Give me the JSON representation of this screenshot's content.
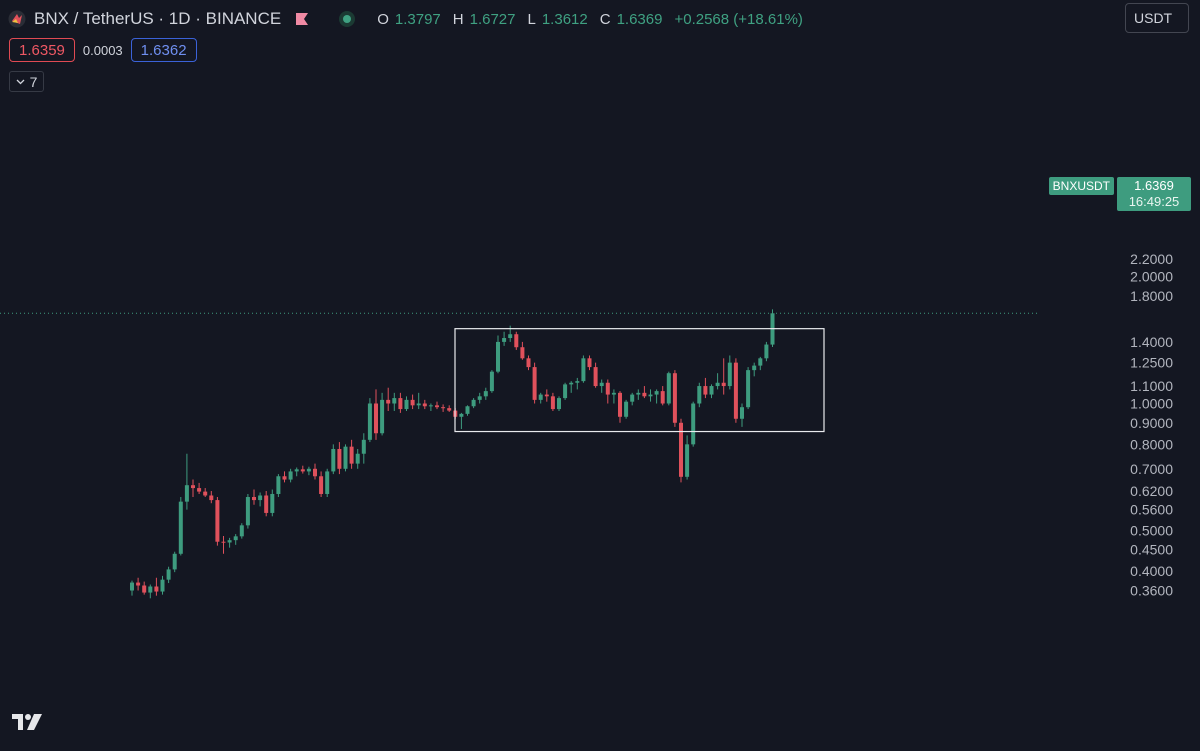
{
  "header": {
    "title": "BNX / TetherUS · 1D · BINANCE",
    "ohlc": {
      "o_label": "O",
      "o": "1.3797",
      "h_label": "H",
      "h": "1.6727",
      "l_label": "L",
      "l": "1.3612",
      "c_label": "C",
      "c": "1.6369",
      "change": "+0.2568 (+18.61%)"
    },
    "currency": "USDT"
  },
  "trade": {
    "sell_price": "1.6359",
    "spread": "0.0003",
    "buy_price": "1.6362"
  },
  "indicators_toggle": {
    "count": "7"
  },
  "last_price_tag": {
    "symbol": "BNXUSDT",
    "price": "1.6369",
    "countdown": "16:49:25"
  },
  "colors": {
    "background": "#141722",
    "up": "#3e9c7f",
    "down": "#e0515c",
    "box": "#e9eaee",
    "axis_text": "#b2b5be"
  },
  "icons": {
    "logo": "bnx-logo-icon",
    "flag": "flag-icon",
    "status": "market-status-dot-icon",
    "toggle": "chevron-down-icon",
    "brand": "tradingview-logo-icon"
  },
  "chart_data": {
    "type": "candlestick",
    "y_scale": "log",
    "ylim": [
      0.34,
      2.3
    ],
    "y_ticks": [
      "2.2000",
      "2.0000",
      "1.8000",
      "1.4000",
      "1.2500",
      "1.1000",
      "1.0000",
      "0.9000",
      "0.8000",
      "0.7000",
      "0.6200",
      "0.5600",
      "0.5000",
      "0.4500",
      "0.4000",
      "0.3600"
    ],
    "last_price": 1.6369,
    "rectangle": {
      "price_top": 1.505,
      "price_bottom": 0.858
    },
    "candles": [
      [
        0.36,
        0.38,
        0.35,
        0.376
      ],
      [
        0.376,
        0.386,
        0.36,
        0.37
      ],
      [
        0.37,
        0.378,
        0.352,
        0.356
      ],
      [
        0.356,
        0.372,
        0.345,
        0.368
      ],
      [
        0.368,
        0.386,
        0.35,
        0.358
      ],
      [
        0.358,
        0.39,
        0.352,
        0.382
      ],
      [
        0.382,
        0.41,
        0.375,
        0.404
      ],
      [
        0.404,
        0.445,
        0.398,
        0.44
      ],
      [
        0.44,
        0.6,
        0.436,
        0.585
      ],
      [
        0.585,
        0.76,
        0.56,
        0.64
      ],
      [
        0.64,
        0.66,
        0.6,
        0.63
      ],
      [
        0.63,
        0.648,
        0.61,
        0.618
      ],
      [
        0.618,
        0.63,
        0.6,
        0.605
      ],
      [
        0.605,
        0.62,
        0.58,
        0.59
      ],
      [
        0.59,
        0.6,
        0.46,
        0.47
      ],
      [
        0.47,
        0.485,
        0.44,
        0.468
      ],
      [
        0.468,
        0.48,
        0.455,
        0.474
      ],
      [
        0.474,
        0.49,
        0.462,
        0.484
      ],
      [
        0.484,
        0.52,
        0.478,
        0.514
      ],
      [
        0.514,
        0.61,
        0.505,
        0.6
      ],
      [
        0.6,
        0.625,
        0.575,
        0.59
      ],
      [
        0.59,
        0.615,
        0.57,
        0.605
      ],
      [
        0.605,
        0.62,
        0.54,
        0.55
      ],
      [
        0.55,
        0.625,
        0.54,
        0.61
      ],
      [
        0.61,
        0.68,
        0.6,
        0.672
      ],
      [
        0.672,
        0.69,
        0.65,
        0.66
      ],
      [
        0.66,
        0.7,
        0.65,
        0.69
      ],
      [
        0.69,
        0.705,
        0.672,
        0.698
      ],
      [
        0.698,
        0.712,
        0.682,
        0.69
      ],
      [
        0.69,
        0.708,
        0.676,
        0.7
      ],
      [
        0.7,
        0.72,
        0.66,
        0.672
      ],
      [
        0.672,
        0.69,
        0.6,
        0.61
      ],
      [
        0.61,
        0.7,
        0.6,
        0.69
      ],
      [
        0.69,
        0.8,
        0.68,
        0.78
      ],
      [
        0.78,
        0.81,
        0.68,
        0.7
      ],
      [
        0.7,
        0.8,
        0.69,
        0.79
      ],
      [
        0.79,
        0.82,
        0.7,
        0.72
      ],
      [
        0.72,
        0.78,
        0.7,
        0.76
      ],
      [
        0.76,
        0.85,
        0.72,
        0.82
      ],
      [
        0.82,
        1.03,
        0.81,
        1.0
      ],
      [
        1.0,
        1.08,
        0.82,
        0.85
      ],
      [
        0.85,
        1.06,
        0.84,
        1.02
      ],
      [
        1.02,
        1.09,
        0.96,
        1.0
      ],
      [
        1.0,
        1.06,
        0.96,
        1.03
      ],
      [
        1.03,
        1.06,
        0.95,
        0.97
      ],
      [
        0.97,
        1.04,
        0.96,
        1.02
      ],
      [
        1.02,
        1.05,
        0.97,
        0.99
      ],
      [
        0.99,
        1.06,
        0.97,
        1.0
      ],
      [
        1.0,
        1.02,
        0.97,
        0.985
      ],
      [
        0.985,
        1.0,
        0.96,
        0.99
      ],
      [
        0.99,
        1.01,
        0.97,
        0.98
      ],
      [
        0.98,
        0.995,
        0.955,
        0.975
      ],
      [
        0.975,
        0.99,
        0.955,
        0.962
      ],
      [
        0.962,
        0.975,
        0.92,
        0.93
      ],
      [
        0.93,
        0.95,
        0.87,
        0.945
      ],
      [
        0.945,
        0.99,
        0.935,
        0.985
      ],
      [
        0.985,
        1.03,
        0.975,
        1.02
      ],
      [
        1.02,
        1.06,
        1.0,
        1.04
      ],
      [
        1.04,
        1.09,
        1.02,
        1.07
      ],
      [
        1.07,
        1.2,
        1.06,
        1.19
      ],
      [
        1.19,
        1.45,
        1.18,
        1.4
      ],
      [
        1.4,
        1.48,
        1.37,
        1.43
      ],
      [
        1.43,
        1.53,
        1.4,
        1.46
      ],
      [
        1.46,
        1.48,
        1.34,
        1.36
      ],
      [
        1.36,
        1.4,
        1.27,
        1.28
      ],
      [
        1.28,
        1.3,
        1.2,
        1.22
      ],
      [
        1.22,
        1.25,
        1.0,
        1.02
      ],
      [
        1.02,
        1.06,
        1.0,
        1.05
      ],
      [
        1.05,
        1.08,
        1.01,
        1.04
      ],
      [
        1.04,
        1.06,
        0.96,
        0.97
      ],
      [
        0.97,
        1.04,
        0.96,
        1.03
      ],
      [
        1.03,
        1.12,
        1.02,
        1.11
      ],
      [
        1.11,
        1.13,
        1.06,
        1.12
      ],
      [
        1.12,
        1.15,
        1.08,
        1.13
      ],
      [
        1.13,
        1.3,
        1.12,
        1.28
      ],
      [
        1.28,
        1.3,
        1.2,
        1.22
      ],
      [
        1.22,
        1.25,
        1.09,
        1.1
      ],
      [
        1.1,
        1.14,
        1.06,
        1.12
      ],
      [
        1.12,
        1.14,
        1.0,
        1.05
      ],
      [
        1.05,
        1.08,
        1.0,
        1.06
      ],
      [
        1.06,
        1.07,
        0.9,
        0.93
      ],
      [
        0.93,
        1.02,
        0.92,
        1.01
      ],
      [
        1.01,
        1.06,
        0.99,
        1.05
      ],
      [
        1.05,
        1.08,
        1.02,
        1.06
      ],
      [
        1.06,
        1.1,
        1.03,
        1.04
      ],
      [
        1.04,
        1.08,
        1.01,
        1.05
      ],
      [
        1.05,
        1.08,
        1.0,
        1.07
      ],
      [
        1.07,
        1.1,
        0.99,
        1.0
      ],
      [
        1.0,
        1.19,
        0.99,
        1.18
      ],
      [
        1.18,
        1.2,
        0.88,
        0.9
      ],
      [
        0.9,
        0.92,
        0.65,
        0.67
      ],
      [
        0.67,
        0.84,
        0.66,
        0.8
      ],
      [
        0.8,
        1.01,
        0.79,
        1.0
      ],
      [
        1.0,
        1.12,
        0.98,
        1.1
      ],
      [
        1.1,
        1.15,
        1.03,
        1.05
      ],
      [
        1.05,
        1.11,
        1.03,
        1.1
      ],
      [
        1.1,
        1.18,
        1.08,
        1.12
      ],
      [
        1.12,
        1.28,
        1.05,
        1.1
      ],
      [
        1.1,
        1.3,
        1.08,
        1.25
      ],
      [
        1.25,
        1.28,
        0.9,
        0.92
      ],
      [
        0.92,
        1.0,
        0.88,
        0.98
      ],
      [
        0.98,
        1.22,
        0.97,
        1.2
      ],
      [
        1.2,
        1.25,
        1.16,
        1.23
      ],
      [
        1.23,
        1.29,
        1.2,
        1.28
      ],
      [
        1.28,
        1.4,
        1.26,
        1.38
      ],
      [
        1.3797,
        1.6727,
        1.3612,
        1.6369
      ]
    ]
  }
}
